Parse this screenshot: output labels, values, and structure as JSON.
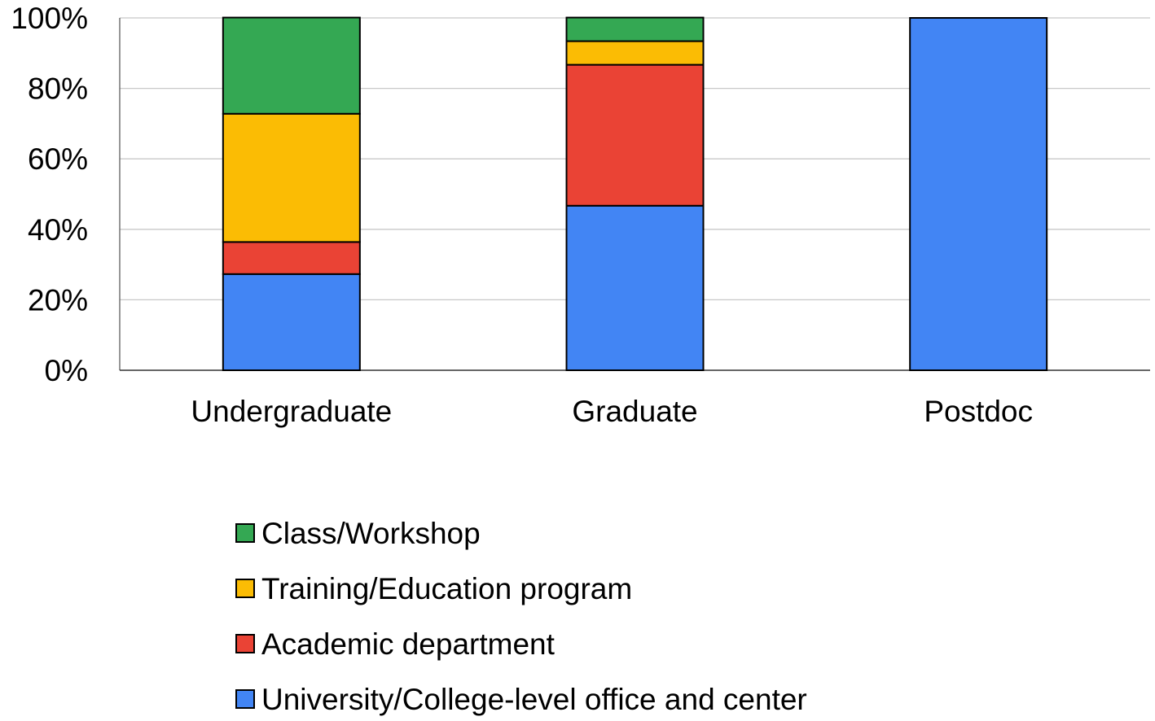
{
  "chart_data": {
    "type": "bar",
    "stacked": true,
    "normalized": true,
    "title": "",
    "xlabel": "",
    "ylabel": "",
    "ylim": [
      0,
      100
    ],
    "y_ticks": [
      "0%",
      "20%",
      "40%",
      "60%",
      "80%",
      "100%"
    ],
    "grid": true,
    "legend_position": "bottom",
    "categories": [
      "Undergraduate",
      "Graduate",
      "Postdoc"
    ],
    "series": [
      {
        "name": "University/College-level office and center",
        "color": "#4285f4",
        "values": [
          27.3,
          46.7,
          100
        ]
      },
      {
        "name": "Academic department",
        "color": "#ea4335",
        "values": [
          9.1,
          40.0,
          0
        ]
      },
      {
        "name": "Training/Education program",
        "color": "#fbbc04",
        "values": [
          36.4,
          6.7,
          0
        ]
      },
      {
        "name": "Class/Workshop",
        "color": "#34a853",
        "values": [
          27.3,
          6.7,
          0
        ]
      }
    ],
    "legend_order": [
      "Class/Workshop",
      "Training/Education program",
      "Academic department",
      "University/College-level office and center"
    ]
  }
}
